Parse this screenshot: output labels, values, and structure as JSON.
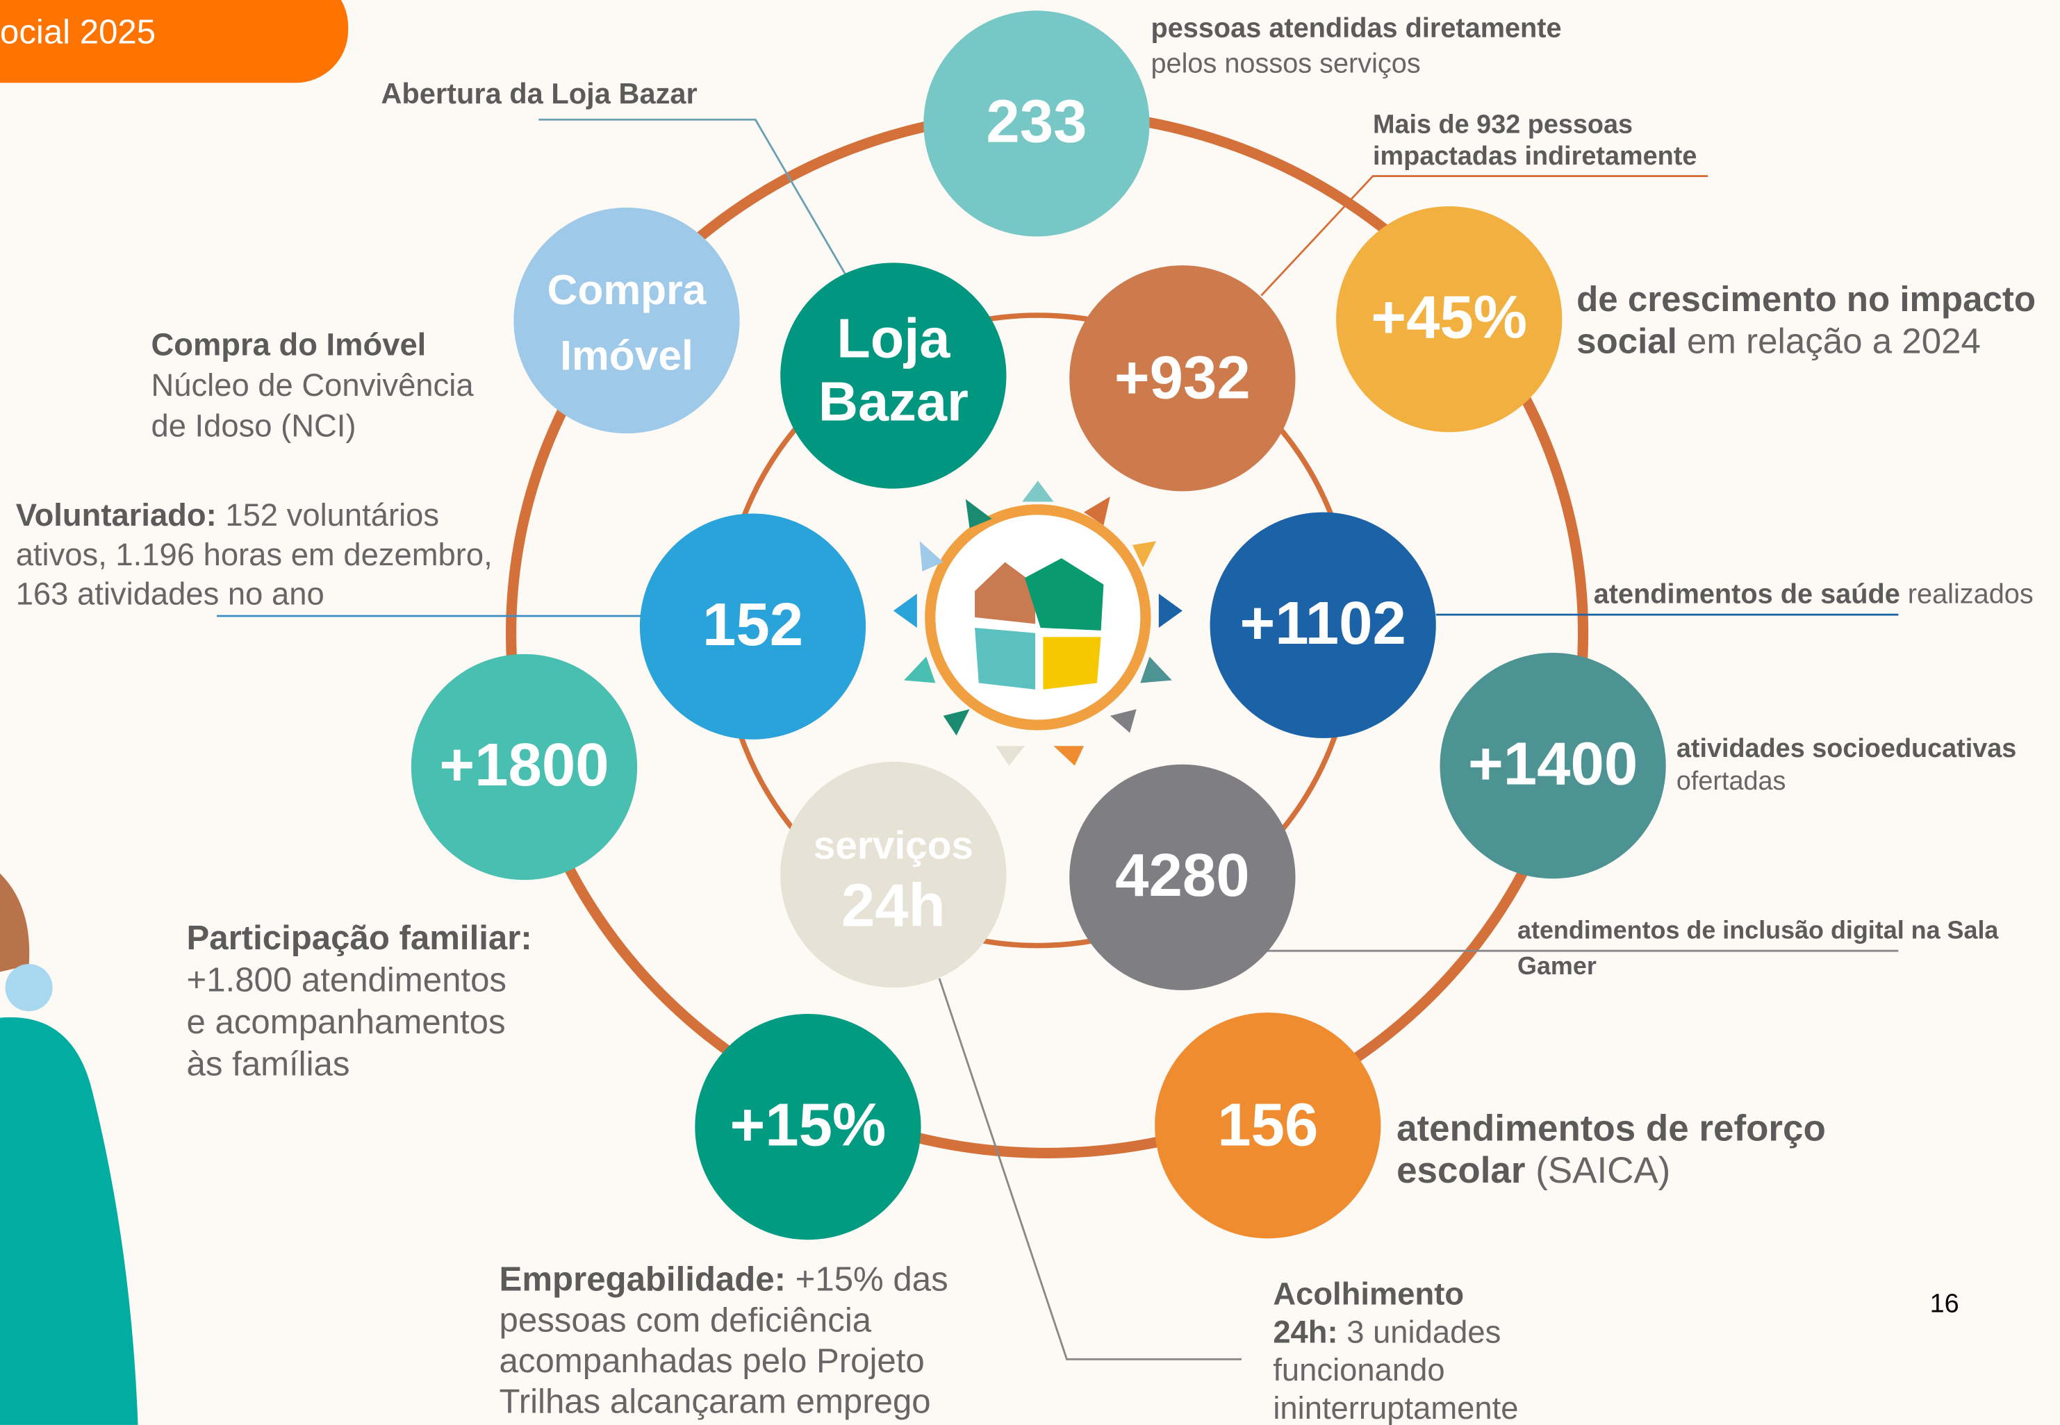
{
  "header": {
    "tab": "ocial 2025"
  },
  "circles": [
    {
      "lines": [
        "233"
      ]
    },
    {
      "lines": [
        "Compra",
        "Imóvel"
      ]
    },
    {
      "lines": [
        "Loja",
        "Bazar"
      ]
    },
    {
      "lines": [
        "+932"
      ]
    },
    {
      "lines": [
        "+45%"
      ]
    },
    {
      "lines": [
        "152"
      ]
    },
    {
      "lines": [
        "+1102"
      ]
    },
    {
      "lines": [
        "+1800"
      ]
    },
    {
      "lines": [
        "+1400"
      ]
    },
    {
      "lines": [
        "serviços",
        "24h"
      ]
    },
    {
      "lines": [
        "4280"
      ]
    },
    {
      "lines": [
        "+15%"
      ]
    },
    {
      "lines": [
        "156"
      ]
    }
  ],
  "annotations": [
    {
      "lines": [
        {
          "bold": "pessoas atendidas diretamente"
        },
        {
          "regular": "pelos nossos serviços"
        }
      ]
    },
    {
      "lines": [
        {
          "bold": "Abertura da Loja Bazar"
        }
      ]
    },
    {
      "lines": [
        {
          "bold": "Mais de 932 pessoas"
        },
        {
          "bold": "impactadas indiretamente"
        }
      ]
    },
    {
      "lines": [
        {
          "bold": "de crescimento no impacto"
        },
        {
          "bold": "social",
          "regular": " em relação a 2024"
        }
      ]
    },
    {
      "lines": [
        {
          "bold": "Compra do Imóvel"
        },
        {
          "regular": "Núcleo de Convivência"
        },
        {
          "regular": "de Idoso (NCI)"
        }
      ]
    },
    {
      "lines": [
        {
          "bold": "Voluntariado:",
          "regular": " 152 voluntários"
        },
        {
          "regular": "ativos, 1.196 horas em dezembro,"
        },
        {
          "regular": "163 atividades no ano"
        }
      ]
    },
    {
      "lines": [
        {
          "bold": "atendimentos de saúde",
          "regular": " realizados"
        }
      ]
    },
    {
      "lines": [
        {
          "bold": "atividades socioeducativas"
        },
        {
          "regular": "ofertadas"
        }
      ]
    },
    {
      "lines": [
        {
          "bold": "Participação familiar:"
        },
        {
          "regular": "+1.800 atendimentos"
        },
        {
          "regular": "e acompanhamentos"
        },
        {
          "regular": "às famílias"
        }
      ]
    },
    {
      "lines": [
        {
          "bold": "atendimentos de inclusão digital na Sala"
        },
        {
          "bold": "Gamer"
        }
      ]
    },
    {
      "lines": [
        {
          "bold": "atendimentos de reforço"
        },
        {
          "bold": "escolar",
          "regular": " (SAICA)"
        }
      ]
    },
    {
      "lines": [
        {
          "bold": "Empregabilidade:",
          "regular": " +15% das"
        },
        {
          "regular": "pessoas com deficiência"
        },
        {
          "regular": "acompanhadas pelo Projeto"
        },
        {
          "regular": "Trilhas alcançaram emprego"
        }
      ]
    },
    {
      "lines": [
        {
          "bold": "Acolhimento"
        },
        {
          "bold": "24h:",
          "regular": " 3 unidades"
        },
        {
          "regular": "funcionando"
        },
        {
          "regular": "ininterruptamente"
        }
      ]
    }
  ],
  "page_number": "16"
}
